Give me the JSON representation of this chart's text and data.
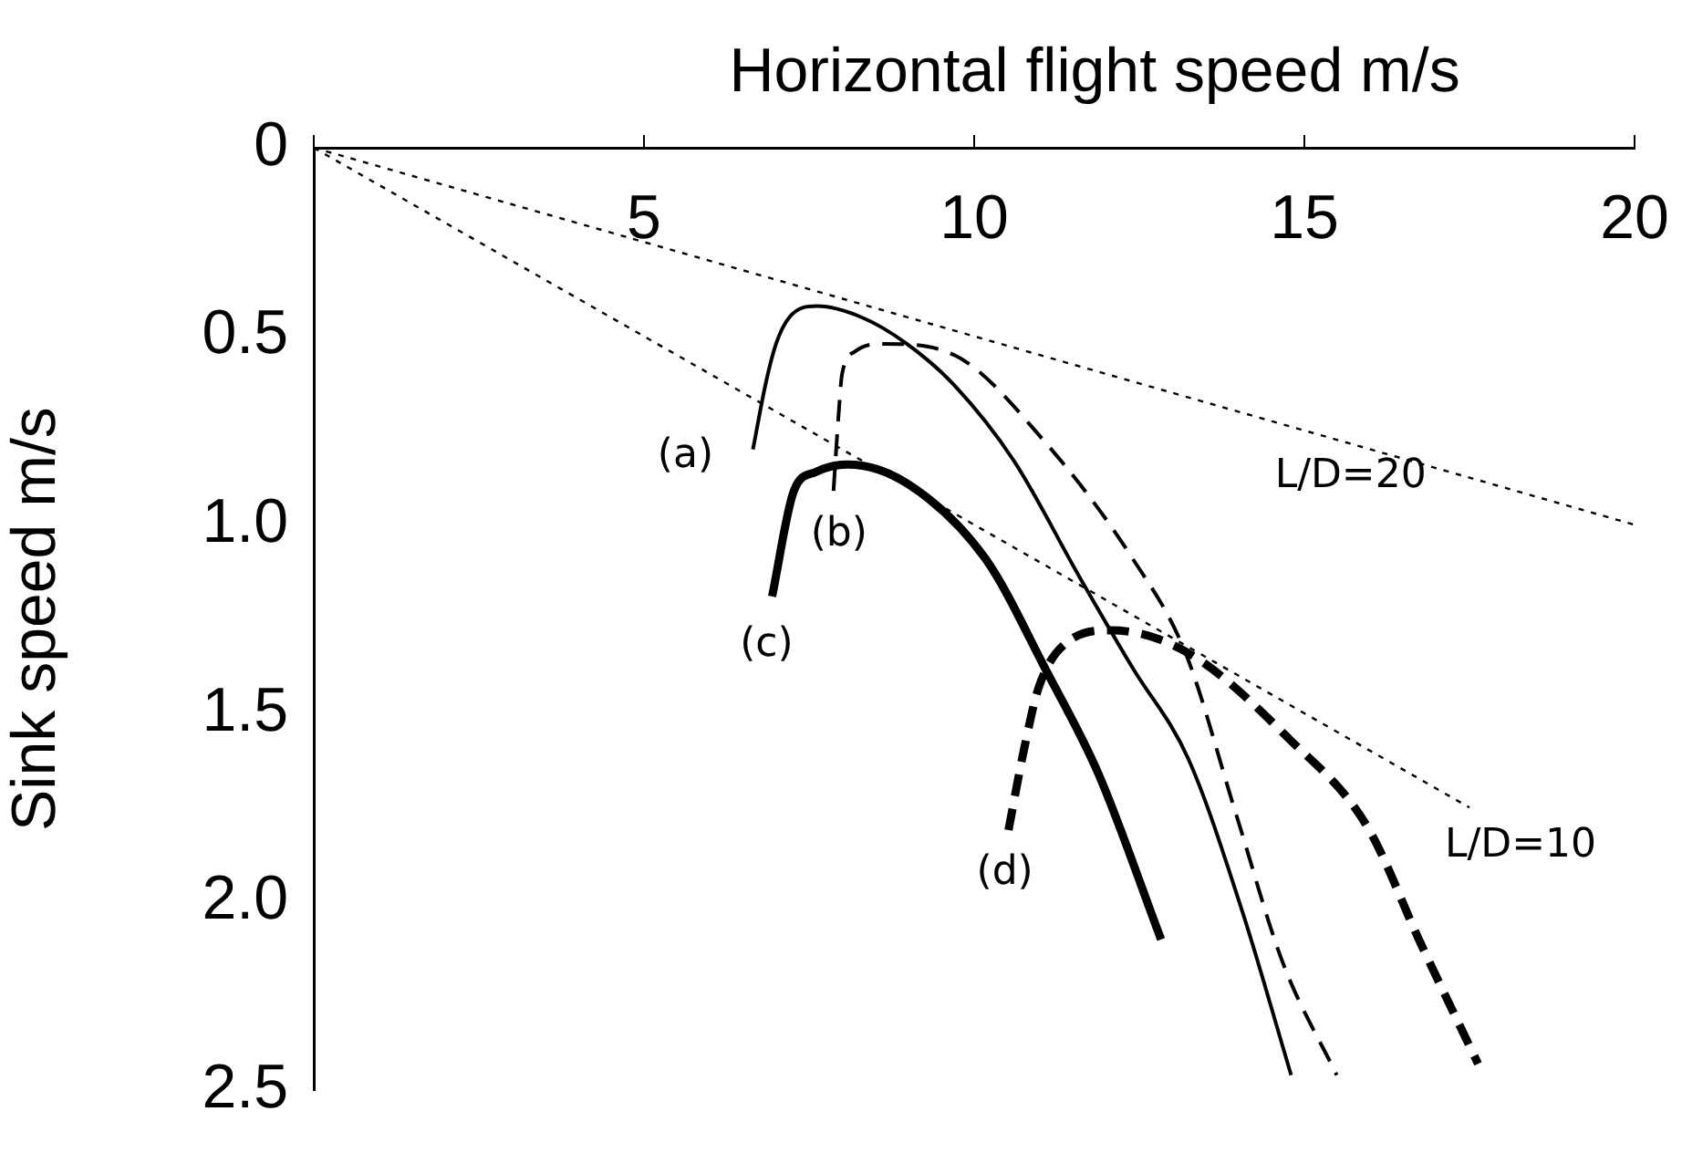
{
  "chart_data": {
    "type": "line",
    "xlabel": "Horizontal flight speed m/s",
    "ylabel": "Sink speed m/s",
    "xlim": [
      0,
      20
    ],
    "xticks": [
      {
        "value": 0,
        "label": null
      },
      5,
      10,
      15,
      20
    ],
    "ylim": [
      2.5,
      0
    ],
    "yticks": [
      0,
      0.5,
      {
        "value": 1,
        "label": "1.0"
      },
      1.5,
      {
        "value": 2,
        "label": "2.0"
      },
      2.5
    ],
    "grid": false,
    "legend": false,
    "marker": "none",
    "series": [
      {
        "color": "#000000",
        "line_style": "solid",
        "x": [
          6.65,
          6.85,
          7.0,
          7.2,
          7.62,
          8.3,
          8.98,
          9.7,
          10.6,
          11.6,
          12.4,
          13.24,
          14.05,
          14.8
        ],
        "values": [
          0.8,
          0.62,
          0.52,
          0.45,
          0.42,
          0.45,
          0.52,
          0.63,
          0.83,
          1.14,
          1.38,
          1.62,
          2.02,
          2.46
        ]
      },
      {
        "color": "#000000",
        "line_style": "dashed",
        "x": [
          7.87,
          7.95,
          8.0,
          8.2,
          8.62,
          9.7,
          11.07,
          12.4,
          13.2,
          13.97,
          14.67,
          15.49
        ],
        "values": [
          0.91,
          0.7,
          0.6,
          0.54,
          0.52,
          0.55,
          0.78,
          1.09,
          1.34,
          1.77,
          2.16,
          2.46
        ]
      },
      {
        "color": "#000000",
        "line_style": "solid",
        "x": [
          6.94,
          7.27,
          7.6,
          8.08,
          8.98,
          10.17,
          11.1,
          11.88,
          12.83
        ],
        "values": [
          1.19,
          0.91,
          0.86,
          0.84,
          0.89,
          1.09,
          1.39,
          1.66,
          2.1
        ]
      },
      {
        "color": "#000000",
        "line_style": "dashed",
        "x": [
          10.52,
          10.75,
          10.98,
          11.42,
          12.07,
          13.24,
          14.78,
          15.95,
          16.76,
          17.63
        ],
        "values": [
          1.81,
          1.6,
          1.43,
          1.31,
          1.28,
          1.34,
          1.57,
          1.8,
          2.11,
          2.43
        ]
      },
      {
        "color": "#000000",
        "line_style": "dotted",
        "x": [
          0,
          20
        ],
        "values": [
          0,
          1.0
        ]
      },
      {
        "color": "#000000",
        "line_style": "dotted",
        "x": [
          0,
          17.5
        ],
        "values": [
          0,
          1.75
        ]
      }
    ],
    "annotations": [
      {
        "text": "(a)",
        "x": 6.65,
        "y": 0.8
      },
      {
        "text": "(b)",
        "x": 7.87,
        "y": 0.91
      },
      {
        "text": "(c)",
        "x": 6.94,
        "y": 1.19
      },
      {
        "text": "(d)",
        "x": 10.52,
        "y": 1.81
      },
      {
        "text": "L/D=20",
        "x": 15.7,
        "y": 0.785
      },
      {
        "text": "L/D=10",
        "x": 17.5,
        "y": 1.75
      }
    ]
  }
}
